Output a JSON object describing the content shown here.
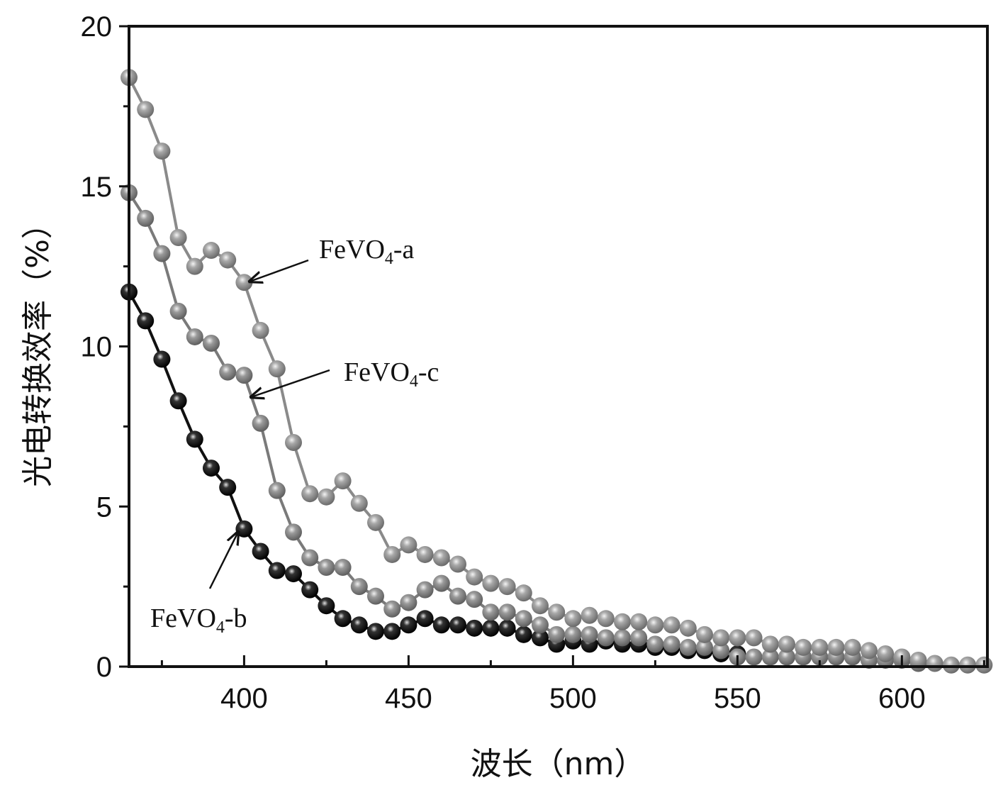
{
  "chart_data": {
    "type": "line",
    "title": "",
    "xlabel": "波长（nm）",
    "ylabel": "光电转换效率（%）",
    "xlim": [
      365,
      626
    ],
    "ylim": [
      0,
      20
    ],
    "xticks": [
      400,
      450,
      500,
      550,
      600
    ],
    "yticks": [
      0,
      5,
      10,
      15,
      20
    ],
    "xtick_labels": [
      "400",
      "450",
      "500",
      "550",
      "600"
    ],
    "ytick_labels": [
      "0",
      "5",
      "10",
      "15",
      "20"
    ],
    "grid": false,
    "legend": "none (inline arrow annotations)",
    "colors": {
      "a": "#8a8a8a",
      "b": "#111111",
      "c": "#7a7a7a"
    },
    "annotations": [
      {
        "series": "FeVO4-a",
        "base": "FeVO",
        "sub": "4",
        "suffix": "-a"
      },
      {
        "series": "FeVO4-c",
        "base": "FeVO",
        "sub": "4",
        "suffix": "-c"
      },
      {
        "series": "FeVO4-b",
        "base": "FeVO",
        "sub": "4",
        "suffix": "-b"
      }
    ],
    "series": [
      {
        "name": "FeVO4-b",
        "key": "b",
        "x": [
          365,
          370,
          375,
          380,
          385,
          390,
          395,
          400,
          405,
          410,
          415,
          420,
          425,
          430,
          435,
          440,
          445,
          450,
          455,
          460,
          465,
          470,
          475,
          480,
          485,
          490,
          495,
          500,
          505,
          510,
          515,
          520,
          525,
          530,
          535,
          540,
          545,
          550
        ],
        "y": [
          11.7,
          10.8,
          9.6,
          8.3,
          7.1,
          6.2,
          5.6,
          4.3,
          3.6,
          3.0,
          2.9,
          2.4,
          1.9,
          1.5,
          1.3,
          1.1,
          1.1,
          1.3,
          1.5,
          1.3,
          1.3,
          1.2,
          1.2,
          1.2,
          1.0,
          0.9,
          0.7,
          0.8,
          0.7,
          0.8,
          0.7,
          0.7,
          0.6,
          0.6,
          0.5,
          0.5,
          0.4,
          0.4
        ]
      },
      {
        "name": "FeVO4-c",
        "key": "c",
        "x": [
          365,
          370,
          375,
          380,
          385,
          390,
          395,
          400,
          405,
          410,
          415,
          420,
          425,
          430,
          435,
          440,
          445,
          450,
          455,
          460,
          465,
          470,
          475,
          480,
          485,
          490,
          495,
          500,
          505,
          510,
          515,
          520,
          525,
          530,
          535,
          540,
          545,
          550,
          555,
          560,
          565,
          570,
          575,
          580,
          585,
          590,
          595,
          600,
          605
        ],
        "y": [
          14.8,
          14.0,
          12.9,
          11.1,
          10.3,
          10.1,
          9.2,
          9.1,
          7.6,
          5.5,
          4.2,
          3.4,
          3.1,
          3.1,
          2.5,
          2.2,
          1.8,
          2.0,
          2.4,
          2.6,
          2.2,
          2.1,
          1.7,
          1.7,
          1.5,
          1.3,
          1.0,
          1.0,
          1.0,
          0.9,
          0.9,
          0.9,
          0.7,
          0.7,
          0.6,
          0.6,
          0.5,
          0.3,
          0.3,
          0.3,
          0.3,
          0.3,
          0.3,
          0.3,
          0.3,
          0.2,
          0.2,
          0.2,
          0.1
        ]
      },
      {
        "name": "FeVO4-a",
        "key": "a",
        "x": [
          365,
          370,
          375,
          380,
          385,
          390,
          395,
          400,
          405,
          410,
          415,
          420,
          425,
          430,
          435,
          440,
          445,
          450,
          455,
          460,
          465,
          470,
          475,
          480,
          485,
          490,
          495,
          500,
          505,
          510,
          515,
          520,
          525,
          530,
          535,
          540,
          545,
          550,
          555,
          560,
          565,
          570,
          575,
          580,
          585,
          590,
          595,
          600,
          605,
          610,
          615,
          620,
          625
        ],
        "y": [
          18.4,
          17.4,
          16.1,
          13.4,
          12.5,
          13.0,
          12.7,
          12.0,
          10.5,
          9.3,
          7.0,
          5.4,
          5.3,
          5.8,
          5.1,
          4.5,
          3.5,
          3.8,
          3.5,
          3.4,
          3.2,
          2.8,
          2.6,
          2.5,
          2.3,
          1.9,
          1.7,
          1.5,
          1.6,
          1.5,
          1.4,
          1.4,
          1.3,
          1.3,
          1.2,
          1.0,
          0.9,
          0.9,
          0.9,
          0.7,
          0.7,
          0.6,
          0.6,
          0.6,
          0.6,
          0.5,
          0.4,
          0.3,
          0.2,
          0.1,
          0.05,
          0.05,
          0.05
        ]
      }
    ]
  }
}
